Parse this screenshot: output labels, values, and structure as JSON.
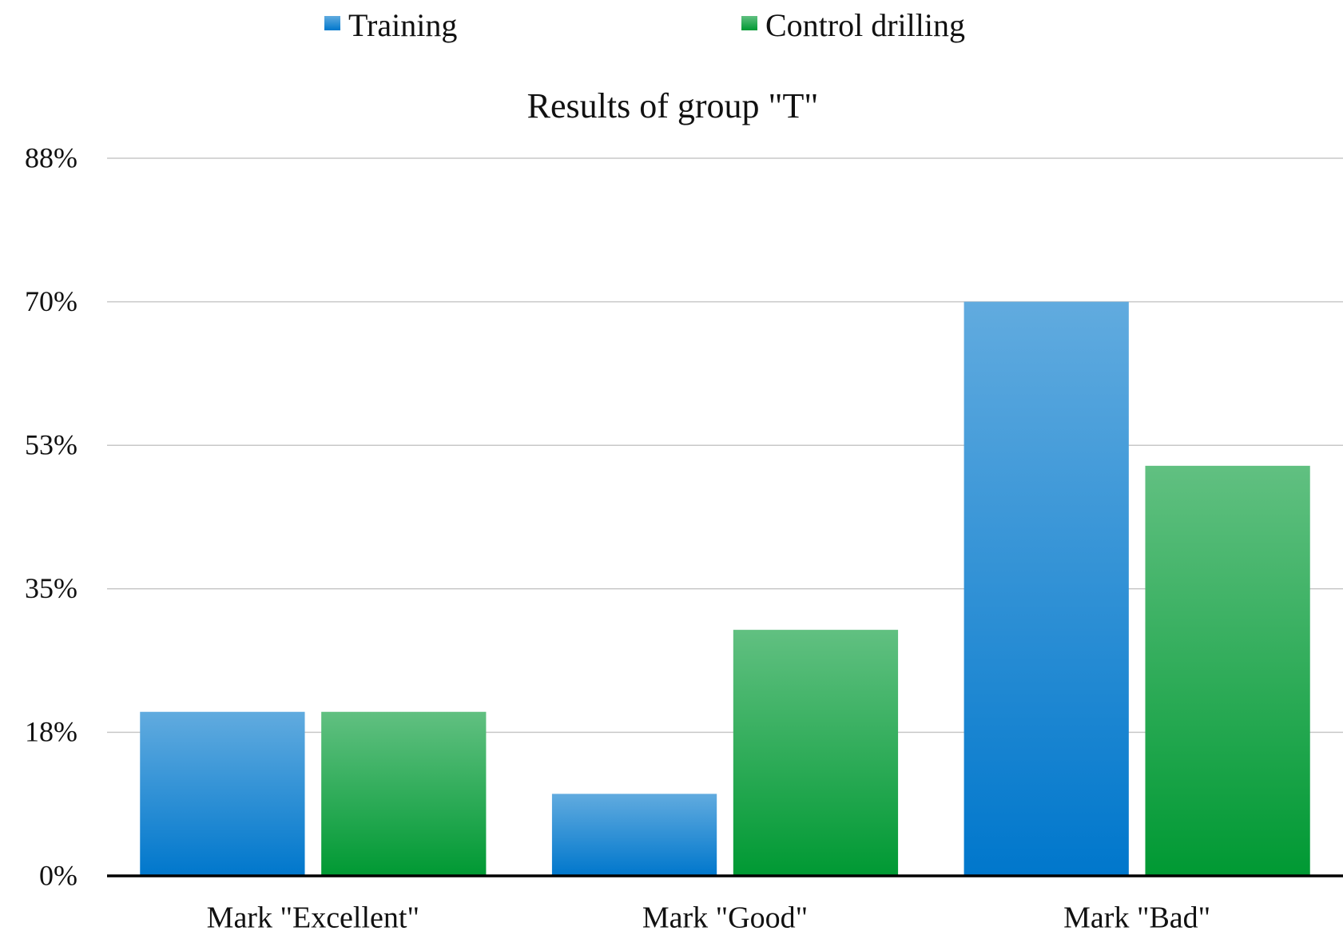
{
  "chart_data": {
    "type": "bar",
    "title": "Results of group \"T\"",
    "categories": [
      "Mark \"Excellent\"",
      "Mark \"Good\"",
      "Mark \"Bad\""
    ],
    "series": [
      {
        "name": "Training",
        "color": "#0077cc",
        "values": [
          20,
          10,
          70
        ]
      },
      {
        "name": "Control drilling",
        "color": "#009933",
        "values": [
          20,
          30,
          50
        ]
      }
    ],
    "ylim": [
      0,
      87.5
    ],
    "yticks": [
      {
        "value": 0,
        "label": "0%"
      },
      {
        "value": 17.5,
        "label": "18%"
      },
      {
        "value": 35,
        "label": "35%"
      },
      {
        "value": 52.5,
        "label": "53%"
      },
      {
        "value": 70,
        "label": "70%"
      },
      {
        "value": 87.5,
        "label": "88%"
      }
    ],
    "grid": true,
    "legend": "top"
  }
}
